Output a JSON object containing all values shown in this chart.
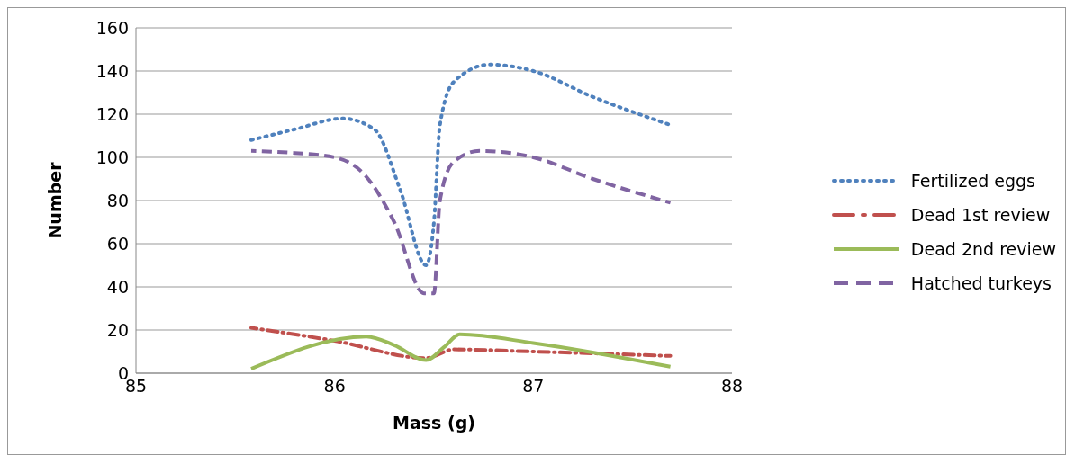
{
  "chart_data": {
    "type": "line",
    "xlabel": "Mass (g)",
    "ylabel": "Number",
    "xlim": [
      85,
      88
    ],
    "xticks": [
      85,
      86,
      87,
      88
    ],
    "ylim": [
      0,
      160
    ],
    "yticks": [
      0,
      20,
      40,
      60,
      80,
      100,
      120,
      140,
      160
    ],
    "grid": "y",
    "legend": "right",
    "marker": "none",
    "series": [
      {
        "name": "Fertilized eggs",
        "color": "#4f81bd",
        "line_style": "dotted",
        "x": [
          85.58,
          85.8,
          86.04,
          86.2,
          86.33,
          86.46,
          86.5,
          86.53,
          86.6,
          86.78,
          87.0,
          87.3,
          87.69
        ],
        "values": [
          108,
          113,
          118,
          113,
          85,
          50,
          70,
          115,
          135,
          143,
          140,
          128,
          115
        ]
      },
      {
        "name": "Dead 1st review",
        "color": "#c0504d",
        "line_style": "dashdot",
        "x": [
          85.58,
          86.0,
          86.46,
          86.6,
          87.0,
          87.69
        ],
        "values": [
          21,
          15,
          7,
          11,
          10,
          8
        ]
      },
      {
        "name": "Dead 2nd review",
        "color": "#9bbb59",
        "line_style": "solid",
        "x": [
          85.58,
          86.16,
          86.3,
          86.46,
          86.55,
          86.63,
          87.0,
          87.69
        ],
        "values": [
          2,
          17,
          13,
          6,
          12,
          18,
          14,
          3
        ]
      },
      {
        "name": "Hatched turkeys",
        "color": "#8064a2",
        "line_style": "dashed",
        "x": [
          85.58,
          85.8,
          86.0,
          86.15,
          86.3,
          86.45,
          86.5,
          86.53,
          86.6,
          86.73,
          87.0,
          87.3,
          87.69
        ],
        "values": [
          103,
          102,
          100,
          92,
          70,
          37,
          37,
          80,
          98,
          103,
          100,
          90,
          79
        ]
      }
    ]
  }
}
